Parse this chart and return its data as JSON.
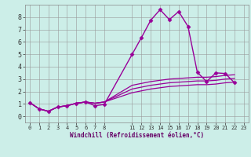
{
  "xlabel": "Windchill (Refroidissement éolien,°C)",
  "background_color": "#cceee8",
  "grid_color": "#999999",
  "line_color": "#990099",
  "x_ticks": [
    0,
    1,
    2,
    3,
    4,
    5,
    6,
    7,
    8,
    11,
    12,
    13,
    14,
    15,
    16,
    17,
    18,
    19,
    20,
    21,
    22,
    23
  ],
  "x_tick_labels": [
    "0",
    "1",
    "2",
    "3",
    "4",
    "5",
    "6",
    "7",
    "8",
    "11",
    "12",
    "13",
    "14",
    "15",
    "16",
    "17",
    "18",
    "19",
    "20",
    "21",
    "22",
    "23"
  ],
  "y_ticks": [
    0,
    1,
    2,
    3,
    4,
    5,
    6,
    7,
    8
  ],
  "ylim": [
    -0.5,
    9.0
  ],
  "xlim": [
    -0.5,
    23.5
  ],
  "series": [
    {
      "x": [
        0,
        1,
        2,
        3,
        4,
        5,
        6,
        7,
        8,
        11,
        12,
        13,
        14,
        15,
        16,
        17,
        18,
        19,
        20,
        21,
        22,
        23
      ],
      "y": [
        1.1,
        0.6,
        0.4,
        0.75,
        0.85,
        1.05,
        1.15,
        0.85,
        0.95,
        5.0,
        6.35,
        7.75,
        8.6,
        7.8,
        8.45,
        7.25,
        3.55,
        2.8,
        3.5,
        3.45,
        2.7,
        null
      ],
      "marker": "D",
      "markersize": 2.5,
      "linewidth": 1.0
    },
    {
      "x": [
        0,
        1,
        2,
        3,
        4,
        5,
        6,
        7,
        8,
        11,
        12,
        13,
        14,
        15,
        16,
        17,
        18,
        19,
        20,
        21,
        22,
        23
      ],
      "y": [
        1.1,
        0.6,
        0.4,
        0.75,
        0.85,
        1.05,
        1.15,
        1.05,
        1.15,
        2.5,
        2.65,
        2.8,
        2.9,
        3.0,
        3.05,
        3.1,
        3.15,
        3.15,
        3.2,
        3.3,
        3.35,
        null
      ],
      "marker": null,
      "markersize": 0,
      "linewidth": 0.9
    },
    {
      "x": [
        0,
        1,
        2,
        3,
        4,
        5,
        6,
        7,
        8,
        11,
        12,
        13,
        14,
        15,
        16,
        17,
        18,
        19,
        20,
        21,
        22,
        23
      ],
      "y": [
        1.1,
        0.6,
        0.4,
        0.75,
        0.85,
        1.05,
        1.15,
        1.05,
        1.15,
        2.2,
        2.35,
        2.5,
        2.6,
        2.7,
        2.75,
        2.8,
        2.85,
        2.85,
        2.9,
        3.0,
        3.05,
        null
      ],
      "marker": null,
      "markersize": 0,
      "linewidth": 0.9
    },
    {
      "x": [
        0,
        1,
        2,
        3,
        4,
        5,
        6,
        7,
        8,
        11,
        12,
        13,
        14,
        15,
        16,
        17,
        18,
        19,
        20,
        21,
        22,
        23
      ],
      "y": [
        1.1,
        0.6,
        0.4,
        0.75,
        0.85,
        1.05,
        1.15,
        1.05,
        1.15,
        1.9,
        2.05,
        2.2,
        2.3,
        2.4,
        2.45,
        2.5,
        2.55,
        2.55,
        2.6,
        2.7,
        2.75,
        null
      ],
      "marker": null,
      "markersize": 0,
      "linewidth": 0.9
    }
  ],
  "tick_fontsize": 5,
  "xlabel_fontsize": 5.5,
  "xlabel_color": "#660066",
  "spine_color": "#888888"
}
